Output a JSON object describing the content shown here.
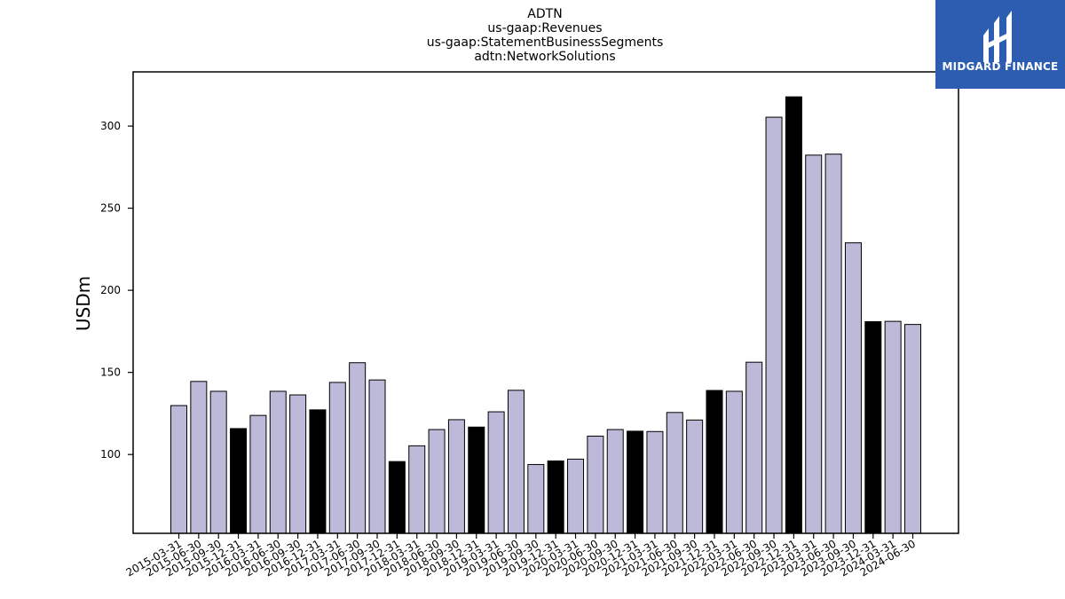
{
  "chart_data": {
    "type": "bar",
    "title_lines": [
      "ADTN",
      "us-gaap:Revenues",
      "us-gaap:StatementBusinessSegments",
      "adtn:NetworkSolutions"
    ],
    "xlabel": "",
    "ylabel": "USDm",
    "ylim": [
      52,
      333
    ],
    "yticks": [
      100,
      150,
      200,
      250,
      300
    ],
    "categories": [
      "2015-03-31",
      "2015-06-30",
      "2015-09-30",
      "2015-12-31",
      "2016-03-31",
      "2016-06-30",
      "2016-09-30",
      "2016-12-31",
      "2017-03-31",
      "2017-06-30",
      "2017-09-30",
      "2017-12-31",
      "2018-03-31",
      "2018-06-30",
      "2018-09-30",
      "2018-12-31",
      "2019-03-31",
      "2019-06-30",
      "2019-09-30",
      "2019-12-31",
      "2020-03-31",
      "2020-06-30",
      "2020-09-30",
      "2020-12-31",
      "2021-03-31",
      "2021-06-30",
      "2021-09-30",
      "2021-12-31",
      "2022-03-31",
      "2022-06-30",
      "2022-09-30",
      "2022-12-31",
      "2023-03-31",
      "2023-06-30",
      "2023-09-30",
      "2023-12-31",
      "2024-03-31",
      "2024-06-30"
    ],
    "values": [
      129.8,
      144.5,
      138.5,
      115.8,
      123.8,
      138.5,
      136.3,
      127.2,
      143.9,
      155.9,
      145.4,
      95.7,
      105.3,
      115.2,
      121.2,
      116.7,
      126.0,
      139.1,
      93.9,
      96.1,
      97.2,
      111.2,
      115.2,
      114.2,
      114.0,
      125.6,
      121.0,
      139.0,
      138.5,
      156.2,
      305.4,
      317.8,
      282.3,
      282.9,
      228.9,
      180.9,
      181.1,
      179.2
    ],
    "highlight_quarter_end": "12-31",
    "colors": {
      "bar": "#bcb9d9",
      "highlight": "#000000",
      "edge": "#000000"
    },
    "grid": false,
    "legend": "none"
  },
  "logo": {
    "text": "MIDGARD FINANCE",
    "background": "#2d5db0",
    "text_color": "#ffffff"
  }
}
